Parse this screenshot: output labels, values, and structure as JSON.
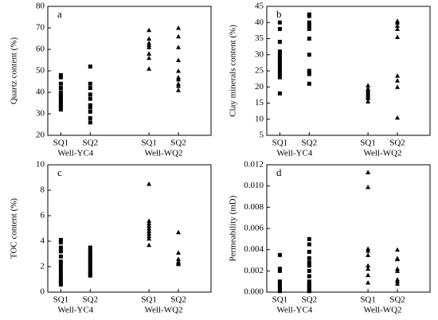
{
  "chart_data": [
    {
      "type": "strip",
      "panel": "a",
      "ylabel": "Quartz content (%)",
      "ylim": [
        20,
        80
      ],
      "yticks": [
        20,
        30,
        40,
        50,
        60,
        70,
        80
      ],
      "color": "#000000",
      "groups": [
        {
          "name": "Well-YC4",
          "marker": "square",
          "categories": [
            "SQ1",
            "SQ2"
          ],
          "values": [
            [
              48,
              47,
              44,
              42,
              40,
              39,
              38,
              37,
              36,
              35,
              34,
              33,
              32
            ],
            [
              52,
              44,
              42,
              39,
              37,
              34,
              33,
              31,
              28,
              26
            ]
          ]
        },
        {
          "name": "Well-WQ2",
          "marker": "triangle",
          "categories": [
            "SQ1",
            "SQ2"
          ],
          "values": [
            [
              69,
              65,
              63,
              62,
              61,
              58,
              56,
              51
            ],
            [
              70,
              66,
              61,
              55,
              50,
              47,
              46,
              44,
              43,
              41
            ]
          ]
        }
      ]
    },
    {
      "type": "strip",
      "panel": "b",
      "ylabel": "Clay minerals content (%)",
      "ylim": [
        5,
        45
      ],
      "yticks": [
        5,
        10,
        15,
        20,
        25,
        30,
        35,
        40,
        45
      ],
      "color": "#000000",
      "groups": [
        {
          "name": "Well-YC4",
          "marker": "square",
          "categories": [
            "SQ1",
            "SQ2"
          ],
          "values": [
            [
              40,
              38,
              34,
              31,
              30,
              29,
              28,
              27,
              26,
              25,
              24,
              23,
              18
            ],
            [
              42.5,
              42,
              40,
              39,
              38,
              35,
              30,
              25,
              24,
              21
            ]
          ]
        },
        {
          "name": "Well-WQ2",
          "marker": "triangle",
          "categories": [
            "SQ1",
            "SQ2"
          ],
          "values": [
            [
              20.5,
              19.5,
              19,
              18.5,
              18,
              17.5,
              17,
              16.5,
              15.5
            ],
            [
              40.5,
              40,
              39,
              38,
              35.5,
              23.5,
              22,
              20,
              10.5
            ]
          ]
        }
      ]
    },
    {
      "type": "strip",
      "panel": "c",
      "ylabel": "TOC content (%)",
      "ylim": [
        0,
        10
      ],
      "yticks": [
        0,
        2,
        4,
        6,
        8,
        10
      ],
      "color": "#000000",
      "groups": [
        {
          "name": "Well-YC4",
          "marker": "square",
          "categories": [
            "SQ1",
            "SQ2"
          ],
          "values": [
            [
              4.1,
              3.9,
              3.5,
              3.2,
              2.8,
              2.4,
              2.1,
              1.8,
              1.5,
              1.2,
              1.0,
              0.8,
              0.6
            ],
            [
              3.5,
              3.2,
              3.0,
              2.8,
              2.6,
              2.4,
              2.2,
              2.0,
              1.8,
              1.6,
              1.4,
              1.3
            ]
          ]
        },
        {
          "name": "Well-WQ2",
          "marker": "triangle",
          "categories": [
            "SQ1",
            "SQ2"
          ],
          "values": [
            [
              8.5,
              5.6,
              5.4,
              5.2,
              5.0,
              4.8,
              4.6,
              4.4,
              4.2,
              3.7
            ],
            [
              4.7,
              3.1,
              2.6,
              2.4,
              2.3,
              2.2
            ]
          ]
        }
      ]
    },
    {
      "type": "strip",
      "panel": "d",
      "ylabel": "Permeability (mD)",
      "ylim": [
        0,
        0.012
      ],
      "yticks": [
        {
          "value": 0,
          "label": "0.000"
        },
        {
          "value": 0.002,
          "label": "0.002"
        },
        {
          "value": 0.004,
          "label": "0.004"
        },
        {
          "value": 0.006,
          "label": "0.006"
        },
        {
          "value": 0.008,
          "label": "0.008"
        },
        {
          "value": 0.01,
          "label": "0.010"
        },
        {
          "value": 0.012,
          "label": "0.012"
        }
      ],
      "color": "#000000",
      "groups": [
        {
          "name": "Well-YC4",
          "marker": "square",
          "categories": [
            "SQ1",
            "SQ2"
          ],
          "values": [
            [
              0.0035,
              0.0022,
              0.002,
              0.001,
              0.0008,
              0.0005,
              0.0003,
              0.0001
            ],
            [
              0.005,
              0.0045,
              0.0038,
              0.0032,
              0.0028,
              0.0025,
              0.002,
              0.0015,
              0.001,
              0.0008,
              0.0006,
              0.0004,
              0.0002,
              0.0001
            ]
          ]
        },
        {
          "name": "Well-WQ2",
          "marker": "triangle",
          "categories": [
            "SQ1",
            "SQ2"
          ],
          "values": [
            [
              0.0113,
              0.0099,
              0.0041,
              0.0039,
              0.0035,
              0.0025,
              0.0022,
              0.0016,
              0.0009
            ],
            [
              0.004,
              0.0032,
              0.0031,
              0.0022,
              0.002,
              0.0012,
              0.001,
              0.0008
            ]
          ]
        }
      ]
    }
  ]
}
